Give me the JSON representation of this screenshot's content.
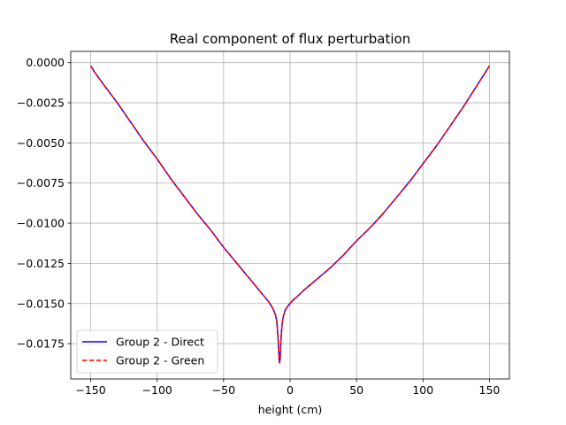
{
  "chart_data": {
    "type": "line",
    "title": "Real component of flux perturbation",
    "xlabel": "height (cm)",
    "ylabel": "",
    "xlim": [
      -165,
      165
    ],
    "ylim": [
      -0.0197,
      0.0007
    ],
    "xticks": [
      -150,
      -100,
      -50,
      0,
      50,
      100,
      150
    ],
    "xtick_labels": [
      "−150",
      "−100",
      "−50",
      "0",
      "50",
      "100",
      "150"
    ],
    "yticks": [
      0.0,
      -0.0025,
      -0.005,
      -0.0075,
      -0.01,
      -0.0125,
      -0.015,
      -0.0175
    ],
    "ytick_labels": [
      "0.0000",
      "−0.0025",
      "−0.0050",
      "−0.0075",
      "−0.0100",
      "−0.0125",
      "−0.0150",
      "−0.0175"
    ],
    "grid": true,
    "legend_position": "lower-left",
    "series": [
      {
        "name": "Group 2 - Direct",
        "color": "#0000ff",
        "style": "solid",
        "x": [
          -150,
          -147,
          -140,
          -130,
          -120,
          -110,
          -100,
          -90,
          -80,
          -70,
          -60,
          -50,
          -40,
          -30,
          -25,
          -20,
          -16,
          -13,
          -11,
          -10,
          -9.5,
          -9,
          -8.5,
          -8,
          -7.5,
          -7,
          -6.5,
          -6,
          -5.5,
          -5,
          -4,
          -3,
          -2,
          0,
          2,
          5,
          10,
          20,
          30,
          40,
          50,
          60,
          70,
          80,
          90,
          100,
          110,
          120,
          130,
          140,
          147,
          150
        ],
        "y": [
          -0.0002,
          -0.0006,
          -0.0014,
          -0.0025,
          -0.0037,
          -0.0049,
          -0.006,
          -0.0072,
          -0.0083,
          -0.0094,
          -0.0104,
          -0.0115,
          -0.0125,
          -0.0135,
          -0.014,
          -0.0145,
          -0.0149,
          -0.0153,
          -0.0157,
          -0.0161,
          -0.0166,
          -0.0172,
          -0.018,
          -0.0187,
          -0.0185,
          -0.0176,
          -0.0168,
          -0.0163,
          -0.016,
          -0.0158,
          -0.0155,
          -0.0153,
          -0.0152,
          -0.015,
          -0.0148,
          -0.0146,
          -0.0142,
          -0.0135,
          -0.0128,
          -0.012,
          -0.0111,
          -0.0103,
          -0.0094,
          -0.0084,
          -0.0074,
          -0.0063,
          -0.0052,
          -0.004,
          -0.0028,
          -0.0015,
          -0.0006,
          -0.0002
        ]
      },
      {
        "name": "Group 2 - Green",
        "color": "#ff0000",
        "style": "dashed",
        "x": [
          -150,
          -147,
          -140,
          -130,
          -120,
          -110,
          -100,
          -90,
          -80,
          -70,
          -60,
          -50,
          -40,
          -30,
          -25,
          -20,
          -16,
          -13,
          -11,
          -10,
          -9.5,
          -9,
          -8.5,
          -8,
          -7.5,
          -7,
          -6.5,
          -6,
          -5.5,
          -5,
          -4,
          -3,
          -2,
          0,
          2,
          5,
          10,
          20,
          30,
          40,
          50,
          60,
          70,
          80,
          90,
          100,
          110,
          120,
          130,
          140,
          147,
          150
        ],
        "y": [
          -0.0002,
          -0.0006,
          -0.0014,
          -0.0025,
          -0.0037,
          -0.0049,
          -0.006,
          -0.0072,
          -0.0083,
          -0.0094,
          -0.0104,
          -0.0115,
          -0.0125,
          -0.0135,
          -0.014,
          -0.0145,
          -0.0149,
          -0.0153,
          -0.0157,
          -0.0161,
          -0.0166,
          -0.0172,
          -0.018,
          -0.0187,
          -0.0185,
          -0.0176,
          -0.0168,
          -0.0163,
          -0.016,
          -0.0158,
          -0.0155,
          -0.0153,
          -0.0152,
          -0.015,
          -0.0148,
          -0.0146,
          -0.0142,
          -0.0135,
          -0.0128,
          -0.012,
          -0.0111,
          -0.0103,
          -0.0094,
          -0.0084,
          -0.0074,
          -0.0063,
          -0.0052,
          -0.004,
          -0.0028,
          -0.0015,
          -0.0006,
          -0.0002
        ]
      }
    ]
  }
}
